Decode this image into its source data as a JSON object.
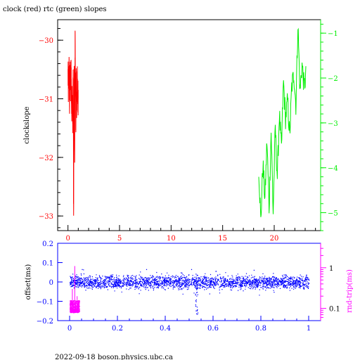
{
  "title": "clock (red) rtc (green) slopes",
  "footer": "2022-09-18 boson.physics.ubc.ca",
  "colors": {
    "clock": "#ff0000",
    "rtc": "#00ee00",
    "offset": "#0000ff",
    "rndtrip": "#ff00ff",
    "axis": "#000000"
  },
  "chart_data": [
    {
      "type": "line",
      "title": "clock (red) rtc (green) slopes",
      "ylabel": "clockslope",
      "xlabel": "",
      "xlim": [
        -1,
        24.5
      ],
      "ylim": [
        -33.25,
        -29.65
      ],
      "y2lim": [
        -5.4,
        -0.7
      ],
      "x_ticks": [
        "0",
        "5",
        "10",
        "15",
        "20"
      ],
      "y_ticks": [
        "-30",
        "-31",
        "-32",
        "-33"
      ],
      "y2_ticks": [
        "-1",
        "-2",
        "-3",
        "-4",
        "-5"
      ],
      "grid": false,
      "series": [
        {
          "name": "clock",
          "axis": "left",
          "x": [
            0.0,
            0.05,
            0.1,
            0.15,
            0.2,
            0.25,
            0.3,
            0.35,
            0.4,
            0.45,
            0.5,
            0.55,
            0.6,
            0.65,
            0.7,
            0.75,
            0.8,
            0.85,
            0.9,
            0.95,
            1.0
          ],
          "y": [
            -30.6,
            -30.9,
            -30.4,
            -31.1,
            -30.5,
            -30.9,
            -30.4,
            -31.2,
            -30.8,
            -31.5,
            -30.5,
            -33.1,
            -30.3,
            -31.8,
            -29.8,
            -31.6,
            -30.6,
            -31.2,
            -30.7,
            -31.0,
            -30.9
          ]
        },
        {
          "name": "rtc",
          "axis": "right",
          "x": [
            18.5,
            18.7,
            18.9,
            19.1,
            19.3,
            19.5,
            19.7,
            19.9,
            20.1,
            20.3,
            20.5,
            20.7,
            20.9,
            21.1,
            21.3,
            21.5,
            21.7,
            21.9,
            22.1,
            22.3,
            22.5,
            22.7,
            22.9,
            23.1
          ],
          "y": [
            -4.0,
            -5.2,
            -3.9,
            -4.7,
            -3.4,
            -4.9,
            -3.2,
            -5.0,
            -3.1,
            -4.2,
            -2.8,
            -3.6,
            -2.1,
            -2.9,
            -2.5,
            -3.3,
            -2.2,
            -1.9,
            -2.6,
            -0.8,
            -2.3,
            -1.7,
            -2.2,
            -1.9
          ]
        }
      ]
    },
    {
      "type": "scatter",
      "xlabel": "",
      "ylabel": "offset(ms)",
      "y2label": "rnd-trip(ms)",
      "xlim": [
        -0.05,
        1.05
      ],
      "ylim": [
        -0.2,
        0.2
      ],
      "y2_scale": "log",
      "x_ticks": [
        "0",
        "0.2",
        "0.4",
        "0.6",
        "0.8",
        "1"
      ],
      "y_ticks": [
        "0.2",
        "0.1",
        "0",
        "-0.1",
        "-0.2"
      ],
      "y2_ticks": [
        "1",
        "0.1"
      ],
      "grid": false,
      "series": [
        {
          "name": "offset",
          "axis": "left",
          "x_range": [
            0.0,
            1.0
          ],
          "y_center": 0.0,
          "y_spread": 0.025,
          "outlier_band": {
            "x": 0.53,
            "y_min": -0.17,
            "y_max": 0.05
          }
        },
        {
          "name": "rnd-trip",
          "axis": "right",
          "x_range": [
            0.0,
            0.04
          ],
          "y_min": 0.08,
          "y_max": 0.16,
          "spikes": [
            0.3,
            1.1,
            0.2
          ]
        }
      ]
    }
  ]
}
